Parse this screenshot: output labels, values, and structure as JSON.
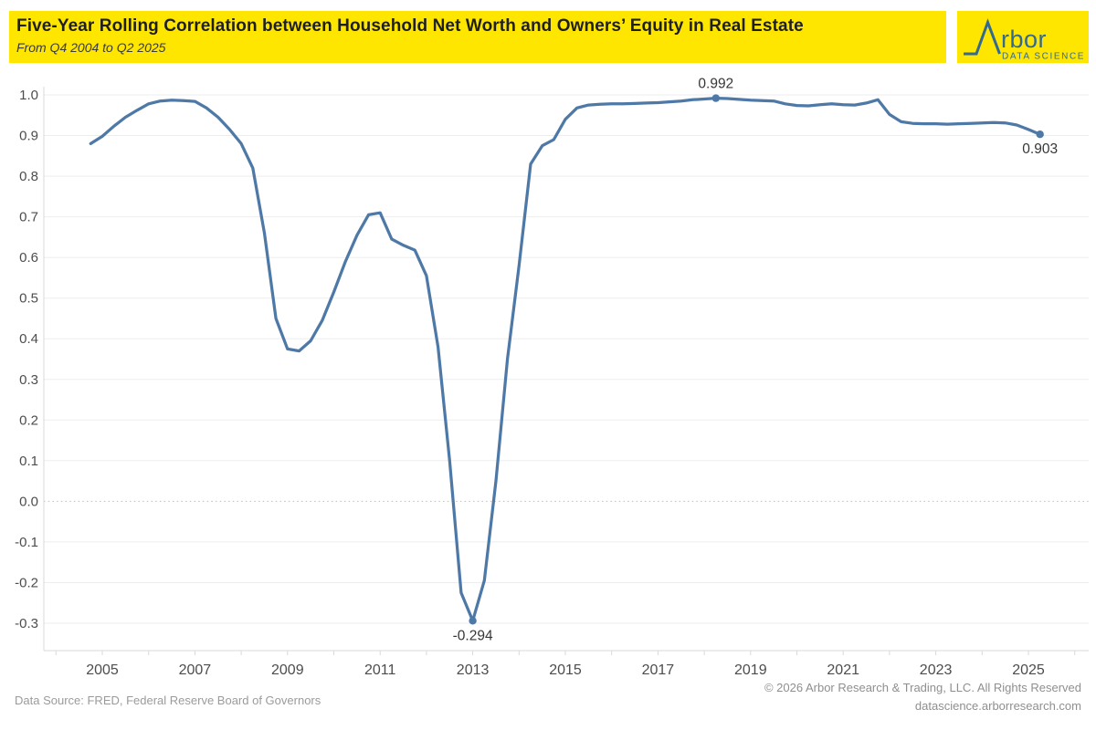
{
  "header": {
    "title": "Five-Year Rolling Correlation between Household Net Worth and Owners’ Equity in Real Estate",
    "subtitle": "From Q4 2004 to Q2 2025",
    "background": "#FFE600"
  },
  "logo": {
    "name": "Arbor Data Science",
    "wordmark": "rbor",
    "tagline": "DATA SCIENCE",
    "color": "#336A8F",
    "background": "#FFE600",
    "peak_icon": "mountain-peak-A"
  },
  "footer": {
    "source": "Data Source: FRED, Federal Reserve Board of Governors",
    "copyright": "© 2026 Arbor Research & Trading, LLC. All Rights Reserved",
    "website": "datascience.arborresearch.com"
  },
  "chart_data": {
    "type": "line",
    "title": "Five-Year Rolling Correlation between Household Net Worth and Owners’ Equity in Real Estate",
    "subtitle": "From Q4 2004 to Q2 2025",
    "xlabel": "",
    "ylabel": "",
    "x_start": 2004.75,
    "x_step_years": 0.25,
    "x_end": 2025.25,
    "values": [
      0.88,
      0.898,
      0.923,
      0.945,
      0.962,
      0.978,
      0.985,
      0.987,
      0.986,
      0.984,
      0.968,
      0.945,
      0.915,
      0.88,
      0.82,
      0.66,
      0.45,
      0.375,
      0.37,
      0.395,
      0.445,
      0.515,
      0.59,
      0.655,
      0.705,
      0.71,
      0.645,
      0.63,
      0.618,
      0.555,
      0.38,
      0.1,
      -0.225,
      -0.294,
      -0.195,
      0.05,
      0.35,
      0.58,
      0.83,
      0.875,
      0.89,
      0.94,
      0.968,
      0.975,
      0.977,
      0.978,
      0.978,
      0.979,
      0.98,
      0.981,
      0.983,
      0.985,
      0.988,
      0.99,
      0.992,
      0.991,
      0.989,
      0.987,
      0.986,
      0.985,
      0.978,
      0.974,
      0.973,
      0.976,
      0.978,
      0.976,
      0.975,
      0.98,
      0.988,
      0.952,
      0.934,
      0.93,
      0.929,
      0.929,
      0.928,
      0.929,
      0.93,
      0.931,
      0.932,
      0.931,
      0.926,
      0.915,
      0.903
    ],
    "ylim": [
      -0.3,
      1.0
    ],
    "y_ticks": [
      1.0,
      0.9,
      0.8,
      0.7,
      0.6,
      0.5,
      0.4,
      0.3,
      0.2,
      0.1,
      0.0,
      -0.1,
      -0.2,
      -0.3
    ],
    "y_tick_labels": [
      "1.0",
      "0.9",
      "0.8",
      "0.7",
      "0.6",
      "0.5",
      "0.4",
      "0.3",
      "0.2",
      "0.1",
      "0.0",
      "-0.1",
      "-0.2",
      "-0.3"
    ],
    "x_label_years": [
      2005,
      2007,
      2009,
      2011,
      2013,
      2015,
      2017,
      2019,
      2021,
      2023,
      2025
    ],
    "x_tick_labels": [
      "2005",
      "2007",
      "2009",
      "2011",
      "2013",
      "2015",
      "2017",
      "2019",
      "2021",
      "2023",
      "2025"
    ],
    "minor_tick_years": [
      2004,
      2005,
      2006,
      2007,
      2008,
      2009,
      2010,
      2011,
      2012,
      2013,
      2014,
      2015,
      2016,
      2017,
      2018,
      2019,
      2020,
      2021,
      2022,
      2023,
      2024,
      2025,
      2026
    ],
    "grid": "horizontal-only",
    "zero_line_style": "dotted",
    "legend": "none",
    "line_color": "#4E79A7",
    "grid_color": "#EDEDED",
    "zero_line_color": "#BDBDBD",
    "axis_color": "#D9D9D9",
    "tick_text_color": "#4D4D4D",
    "annotation_text_color": "#363636",
    "annotations": [
      {
        "label": "0.992",
        "index": 54,
        "placement": "above"
      },
      {
        "label": "-0.294",
        "index": 33,
        "placement": "below"
      },
      {
        "label": "0.903",
        "index": 82,
        "placement": "below"
      }
    ]
  }
}
